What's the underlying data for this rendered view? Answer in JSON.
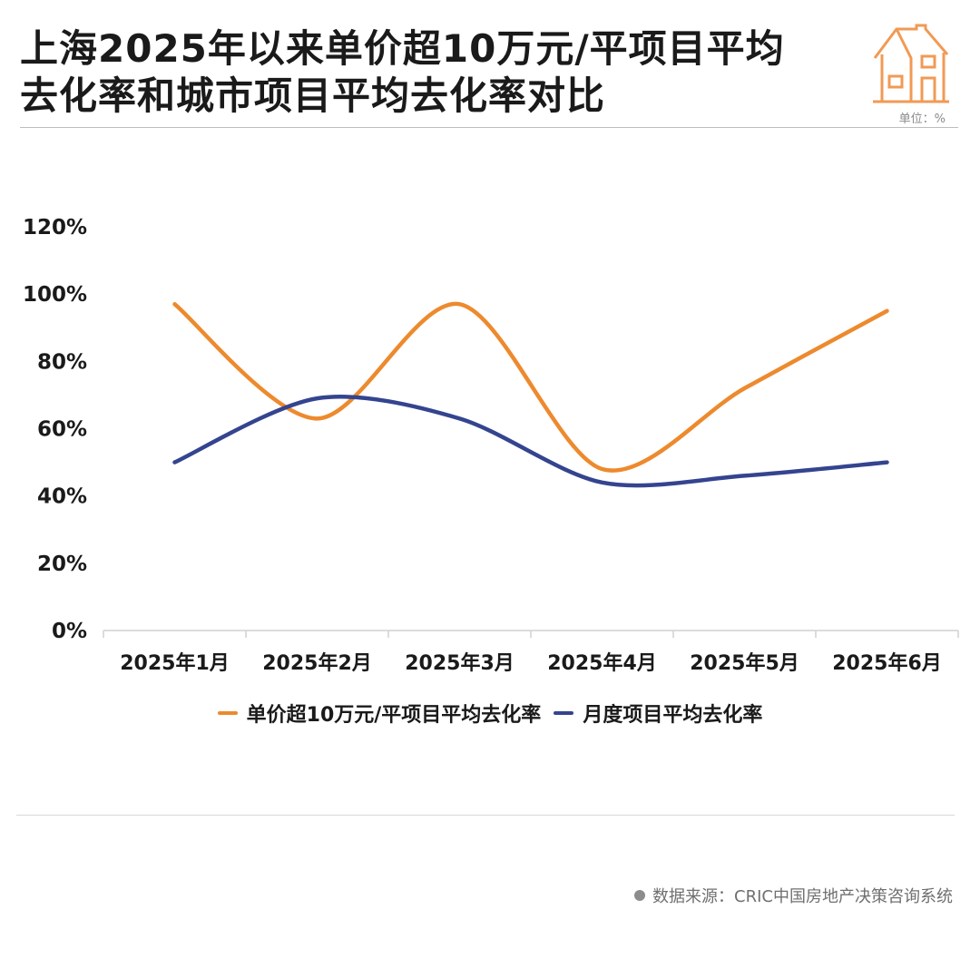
{
  "header": {
    "title_line1": "上海2025年以来单价超10万元/平项目平均",
    "title_line2": "去化率和城市项目平均去化率对比",
    "unit": "单位：%",
    "logo_icon": "house-icon"
  },
  "footer": {
    "source": "数据来源：CRIC中国房地产决策咨询系统"
  },
  "colors": {
    "series_orange": "#ED8A2E",
    "series_blue": "#34448F",
    "logo_orange": "#F19A54"
  },
  "chart_data": {
    "type": "line",
    "title": "上海2025年以来单价超10万元/平项目平均去化率和城市项目平均去化率对比",
    "categories": [
      "2025年1月",
      "2025年2月",
      "2025年3月",
      "2025年4月",
      "2025年5月",
      "2025年6月"
    ],
    "y_ticks": [
      "0%",
      "20%",
      "40%",
      "60%",
      "80%",
      "100%",
      "120%"
    ],
    "ylim": [
      0,
      120
    ],
    "unit": "%",
    "smooth": true,
    "grid": false,
    "legend_position": "bottom",
    "series": [
      {
        "name": "单价超10万元/平项目平均去化率",
        "color": "#ED8A2E",
        "values": [
          97,
          63,
          97,
          48,
          72,
          95
        ]
      },
      {
        "name": "月度项目平均去化率",
        "color": "#34448F",
        "values": [
          50,
          69,
          63,
          44,
          46,
          50
        ]
      }
    ]
  }
}
